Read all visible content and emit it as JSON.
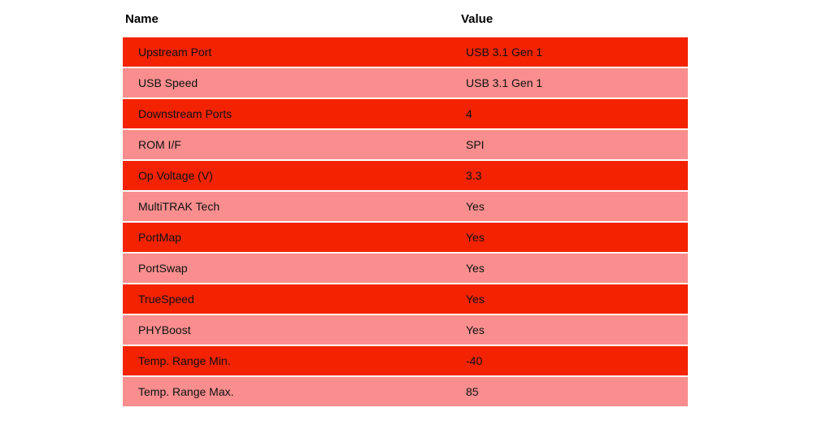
{
  "colors": {
    "row_odd": "#f32301",
    "row_even": "#fa8e8e",
    "header_text": "#000000",
    "cell_text": "#111111",
    "background": "#ffffff"
  },
  "table": {
    "columns": {
      "name": "Name",
      "value": "Value"
    },
    "rows": [
      {
        "name": "Upstream Port",
        "value": "USB 3.1 Gen 1"
      },
      {
        "name": "USB Speed",
        "value": "USB 3.1 Gen 1"
      },
      {
        "name": "Downstream Ports",
        "value": "4"
      },
      {
        "name": "ROM I/F",
        "value": "SPI"
      },
      {
        "name": "Op Voltage (V)",
        "value": "3.3"
      },
      {
        "name": "MultiTRAK Tech",
        "value": "Yes"
      },
      {
        "name": "PortMap",
        "value": "Yes"
      },
      {
        "name": "PortSwap",
        "value": "Yes"
      },
      {
        "name": "TrueSpeed",
        "value": "Yes"
      },
      {
        "name": "PHYBoost",
        "value": "Yes"
      },
      {
        "name": "Temp. Range Min.",
        "value": "-40"
      },
      {
        "name": "Temp. Range Max.",
        "value": "85"
      }
    ]
  },
  "chart_data": {
    "type": "table",
    "columns": [
      "Name",
      "Value"
    ],
    "rows": [
      [
        "Upstream Port",
        "USB 3.1 Gen 1"
      ],
      [
        "USB Speed",
        "USB 3.1 Gen 1"
      ],
      [
        "Downstream Ports",
        "4"
      ],
      [
        "ROM I/F",
        "SPI"
      ],
      [
        "Op Voltage (V)",
        "3.3"
      ],
      [
        "MultiTRAK Tech",
        "Yes"
      ],
      [
        "PortMap",
        "Yes"
      ],
      [
        "PortSwap",
        "Yes"
      ],
      [
        "TrueSpeed",
        "Yes"
      ],
      [
        "PHYBoost",
        "Yes"
      ],
      [
        "Temp. Range Min.",
        "-40"
      ],
      [
        "Temp. Range Max.",
        "85"
      ]
    ],
    "title": "",
    "layout_hints": {
      "striped": true,
      "header_background": "none",
      "row_stripe_colors": [
        "#f32301",
        "#fa8e8e"
      ]
    }
  }
}
